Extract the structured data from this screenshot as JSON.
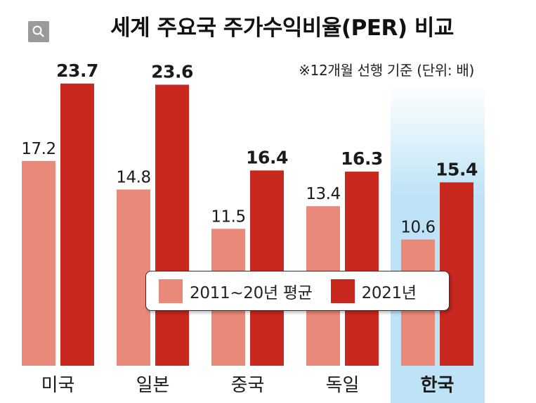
{
  "header": {
    "title": "세계 주요국 주가수익비율(PER) 비교",
    "note": "※12개월 선행 기준 (단위: 배)"
  },
  "colors": {
    "series_avg": "#e8897a",
    "series_2021": "#c8281e",
    "highlight_start": "#ffffff",
    "highlight_end": "#bfe3f6"
  },
  "chart_data": {
    "type": "bar",
    "title": "세계 주요국 주가수익비율(PER) 비교",
    "unit_note": "※12개월 선행 기준 (단위: 배)",
    "categories": [
      "미국",
      "일본",
      "중국",
      "독일",
      "한국"
    ],
    "highlight_category": "한국",
    "series": [
      {
        "name": "2011~20년 평균",
        "values": [
          17.2,
          14.8,
          11.5,
          13.4,
          10.6
        ]
      },
      {
        "name": "2021년",
        "values": [
          23.7,
          23.6,
          16.4,
          16.3,
          15.4
        ]
      }
    ],
    "value_labels": [
      [
        "17.2",
        "14.8",
        "11.5",
        "13.4",
        "10.6"
      ],
      [
        "23.7",
        "23.6",
        "16.4",
        "16.3",
        "15.4"
      ]
    ],
    "ylim": [
      0,
      24
    ],
    "legend_position": "center-bottom",
    "grid": false
  }
}
